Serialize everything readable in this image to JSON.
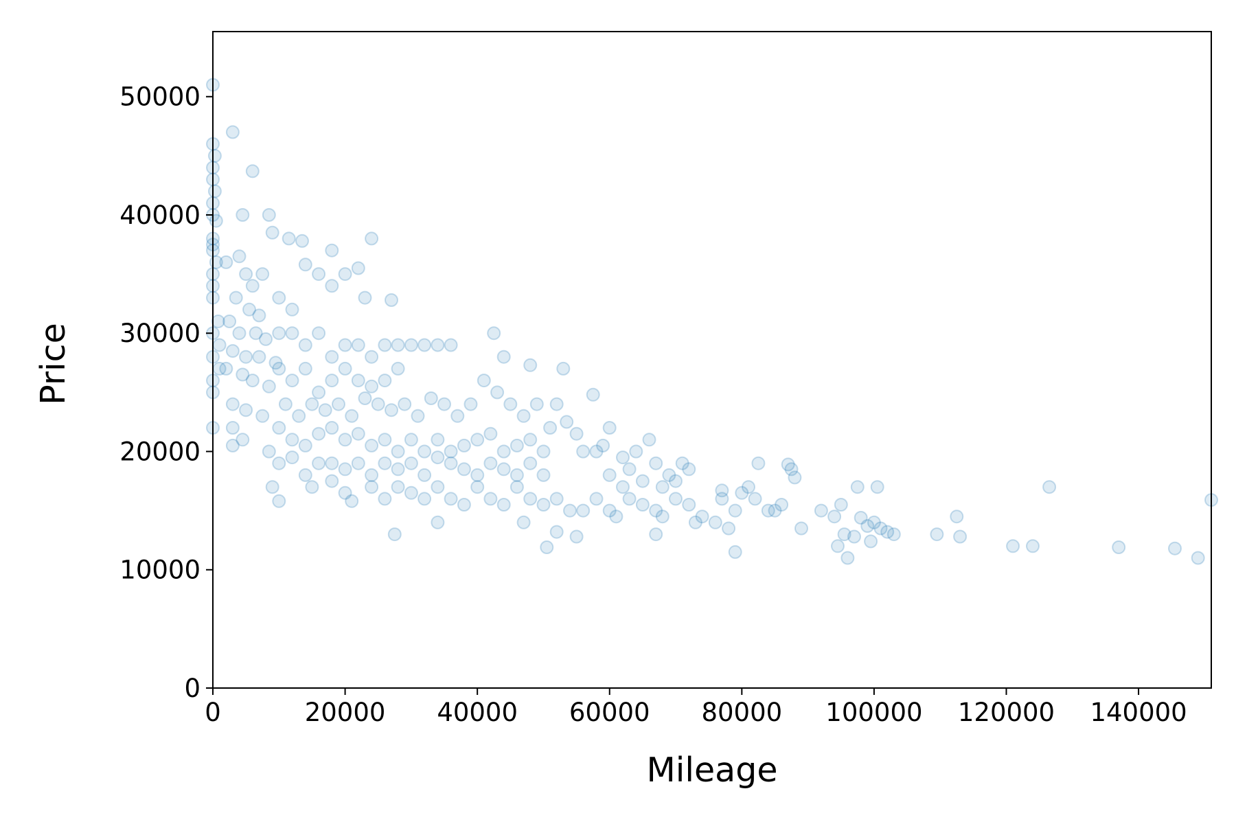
{
  "chart_data": {
    "type": "scatter",
    "title": "",
    "xlabel": "Mileage",
    "ylabel": "Price",
    "xlim": [
      0,
      151000
    ],
    "ylim": [
      0,
      55500
    ],
    "xticks": [
      0,
      20000,
      40000,
      60000,
      80000,
      100000,
      120000,
      140000
    ],
    "yticks": [
      0,
      10000,
      20000,
      30000,
      40000,
      50000
    ],
    "grid": false,
    "legend": "none",
    "marker": "circle",
    "color": "#1f77b4",
    "alpha": 0.15,
    "points_estimated": 1000,
    "series": [
      {
        "points": [
          [
            0,
            51000
          ],
          [
            0,
            46000
          ],
          [
            0,
            44000
          ],
          [
            0,
            43000
          ],
          [
            0,
            41000
          ],
          [
            0,
            40000
          ],
          [
            0,
            38000
          ],
          [
            0,
            37500
          ],
          [
            0,
            37000
          ],
          [
            0,
            35000
          ],
          [
            0,
            34000
          ],
          [
            0,
            33000
          ],
          [
            0,
            30000
          ],
          [
            0,
            28000
          ],
          [
            0,
            26000
          ],
          [
            0,
            25000
          ],
          [
            0,
            22000
          ],
          [
            300,
            45000
          ],
          [
            300,
            42000
          ],
          [
            500,
            39500
          ],
          [
            500,
            36000
          ],
          [
            800,
            31000
          ],
          [
            1000,
            29000
          ],
          [
            1000,
            27000
          ],
          [
            3000,
            47000
          ],
          [
            6000,
            43700
          ],
          [
            4500,
            40000
          ],
          [
            8500,
            40000
          ],
          [
            9000,
            38500
          ],
          [
            11500,
            38000
          ],
          [
            13500,
            37800
          ],
          [
            18000,
            37000
          ],
          [
            24000,
            38000
          ],
          [
            2000,
            36000
          ],
          [
            4000,
            36500
          ],
          [
            5000,
            35000
          ],
          [
            6000,
            34000
          ],
          [
            7500,
            35000
          ],
          [
            3500,
            33000
          ],
          [
            5500,
            32000
          ],
          [
            7000,
            31500
          ],
          [
            2500,
            31000
          ],
          [
            4000,
            30000
          ],
          [
            6500,
            30000
          ],
          [
            8000,
            29500
          ],
          [
            3000,
            28500
          ],
          [
            5000,
            28000
          ],
          [
            7000,
            28000
          ],
          [
            9500,
            27500
          ],
          [
            2000,
            27000
          ],
          [
            4500,
            26500
          ],
          [
            6000,
            26000
          ],
          [
            8500,
            25500
          ],
          [
            3000,
            24000
          ],
          [
            5000,
            23500
          ],
          [
            7500,
            23000
          ],
          [
            3000,
            22000
          ],
          [
            4500,
            21000
          ],
          [
            3000,
            20500
          ],
          [
            10000,
            33000
          ],
          [
            12000,
            32000
          ],
          [
            14000,
            35800
          ],
          [
            16000,
            35000
          ],
          [
            18000,
            34000
          ],
          [
            20000,
            35000
          ],
          [
            22000,
            35500
          ],
          [
            23000,
            33000
          ],
          [
            10000,
            30000
          ],
          [
            12000,
            30000
          ],
          [
            14000,
            29000
          ],
          [
            16000,
            30000
          ],
          [
            18000,
            28000
          ],
          [
            20000,
            29000
          ],
          [
            22000,
            29000
          ],
          [
            24000,
            28000
          ],
          [
            26000,
            29000
          ],
          [
            28000,
            29000
          ],
          [
            30000,
            29000
          ],
          [
            32000,
            29000
          ],
          [
            34000,
            29000
          ],
          [
            36000,
            29000
          ],
          [
            27000,
            32800
          ],
          [
            10000,
            27000
          ],
          [
            12000,
            26000
          ],
          [
            14000,
            27000
          ],
          [
            16000,
            25000
          ],
          [
            18000,
            26000
          ],
          [
            20000,
            27000
          ],
          [
            22000,
            26000
          ],
          [
            24000,
            25500
          ],
          [
            26000,
            26000
          ],
          [
            28000,
            27000
          ],
          [
            11000,
            24000
          ],
          [
            13000,
            23000
          ],
          [
            15000,
            24000
          ],
          [
            17000,
            23500
          ],
          [
            19000,
            24000
          ],
          [
            21000,
            23000
          ],
          [
            23000,
            24500
          ],
          [
            25000,
            24000
          ],
          [
            27000,
            23500
          ],
          [
            29000,
            24000
          ],
          [
            31000,
            23000
          ],
          [
            33000,
            24500
          ],
          [
            35000,
            24000
          ],
          [
            37000,
            23000
          ],
          [
            39000,
            24000
          ],
          [
            10000,
            22000
          ],
          [
            12000,
            21000
          ],
          [
            14000,
            20500
          ],
          [
            16000,
            21500
          ],
          [
            18000,
            22000
          ],
          [
            20000,
            21000
          ],
          [
            22000,
            21500
          ],
          [
            24000,
            20500
          ],
          [
            26000,
            21000
          ],
          [
            28000,
            20000
          ],
          [
            30000,
            21000
          ],
          [
            32000,
            20000
          ],
          [
            34000,
            21000
          ],
          [
            36000,
            20000
          ],
          [
            38000,
            20500
          ],
          [
            40000,
            21000
          ],
          [
            42000,
            21500
          ],
          [
            44000,
            20000
          ],
          [
            46000,
            20500
          ],
          [
            48000,
            21000
          ],
          [
            50000,
            20000
          ],
          [
            8500,
            20000
          ],
          [
            10000,
            19000
          ],
          [
            12000,
            19500
          ],
          [
            14000,
            18000
          ],
          [
            16000,
            19000
          ],
          [
            18000,
            19000
          ],
          [
            20000,
            18500
          ],
          [
            22000,
            19000
          ],
          [
            24000,
            18000
          ],
          [
            26000,
            19000
          ],
          [
            28000,
            18500
          ],
          [
            30000,
            19000
          ],
          [
            32000,
            18000
          ],
          [
            34000,
            19500
          ],
          [
            36000,
            19000
          ],
          [
            38000,
            18500
          ],
          [
            40000,
            18000
          ],
          [
            42000,
            19000
          ],
          [
            44000,
            18500
          ],
          [
            46000,
            18000
          ],
          [
            48000,
            19000
          ],
          [
            50000,
            18000
          ],
          [
            9000,
            17000
          ],
          [
            10000,
            15800
          ],
          [
            15000,
            17000
          ],
          [
            18000,
            17500
          ],
          [
            20000,
            16500
          ],
          [
            21000,
            15800
          ],
          [
            24000,
            17000
          ],
          [
            26000,
            16000
          ],
          [
            28000,
            17000
          ],
          [
            30000,
            16500
          ],
          [
            32000,
            16000
          ],
          [
            34000,
            17000
          ],
          [
            36000,
            16000
          ],
          [
            38000,
            15500
          ],
          [
            40000,
            17000
          ],
          [
            42000,
            16000
          ],
          [
            44000,
            15500
          ],
          [
            46000,
            17000
          ],
          [
            48000,
            16000
          ],
          [
            50000,
            15500
          ],
          [
            52000,
            16000
          ],
          [
            54000,
            15000
          ],
          [
            56000,
            15000
          ],
          [
            27500,
            13000
          ],
          [
            34000,
            14000
          ],
          [
            47000,
            14000
          ],
          [
            50500,
            11900
          ],
          [
            52000,
            13200
          ],
          [
            55000,
            12800
          ],
          [
            42500,
            30000
          ],
          [
            44000,
            28000
          ],
          [
            48000,
            27300
          ],
          [
            53000,
            27000
          ],
          [
            41000,
            26000
          ],
          [
            43000,
            25000
          ],
          [
            45000,
            24000
          ],
          [
            47000,
            23000
          ],
          [
            49000,
            24000
          ],
          [
            52000,
            24000
          ],
          [
            53500,
            22500
          ],
          [
            51000,
            22000
          ],
          [
            55000,
            21500
          ],
          [
            57500,
            24800
          ],
          [
            60000,
            22000
          ],
          [
            56000,
            20000
          ],
          [
            58000,
            20000
          ],
          [
            59000,
            20500
          ],
          [
            62000,
            19500
          ],
          [
            63000,
            18500
          ],
          [
            64000,
            20000
          ],
          [
            66000,
            21000
          ],
          [
            67000,
            19000
          ],
          [
            69000,
            18000
          ],
          [
            71000,
            19000
          ],
          [
            72000,
            18500
          ],
          [
            60000,
            18000
          ],
          [
            62000,
            17000
          ],
          [
            65000,
            17500
          ],
          [
            68000,
            17000
          ],
          [
            70000,
            17500
          ],
          [
            58000,
            16000
          ],
          [
            60000,
            15000
          ],
          [
            61000,
            14500
          ],
          [
            63000,
            16000
          ],
          [
            65000,
            15500
          ],
          [
            67000,
            15000
          ],
          [
            68000,
            14500
          ],
          [
            70000,
            16000
          ],
          [
            72000,
            15500
          ],
          [
            73000,
            14000
          ],
          [
            74000,
            14500
          ],
          [
            76000,
            14000
          ],
          [
            77000,
            16000
          ],
          [
            78000,
            13500
          ],
          [
            67000,
            13000
          ],
          [
            79000,
            15000
          ],
          [
            80000,
            16500
          ],
          [
            81000,
            17000
          ],
          [
            82000,
            16000
          ],
          [
            82500,
            19000
          ],
          [
            84000,
            15000
          ],
          [
            85000,
            15000
          ],
          [
            86000,
            15500
          ],
          [
            87000,
            18900
          ],
          [
            87500,
            18500
          ],
          [
            88000,
            17800
          ],
          [
            89000,
            13500
          ],
          [
            77000,
            16700
          ],
          [
            79000,
            11500
          ],
          [
            92000,
            15000
          ],
          [
            94000,
            14500
          ],
          [
            94500,
            12000
          ],
          [
            95000,
            15500
          ],
          [
            95500,
            13000
          ],
          [
            96000,
            11000
          ],
          [
            97000,
            12800
          ],
          [
            98000,
            14400
          ],
          [
            99000,
            13700
          ],
          [
            100000,
            14000
          ],
          [
            100500,
            17000
          ],
          [
            101000,
            13500
          ],
          [
            102000,
            13200
          ],
          [
            103000,
            13000
          ],
          [
            97500,
            17000
          ],
          [
            99500,
            12400
          ],
          [
            109500,
            13000
          ],
          [
            112500,
            14500
          ],
          [
            113000,
            12800
          ],
          [
            121000,
            12000
          ],
          [
            124000,
            12000
          ],
          [
            126500,
            17000
          ],
          [
            137000,
            11900
          ],
          [
            145500,
            11800
          ],
          [
            149000,
            11000
          ],
          [
            151000,
            15900
          ]
        ]
      }
    ]
  }
}
